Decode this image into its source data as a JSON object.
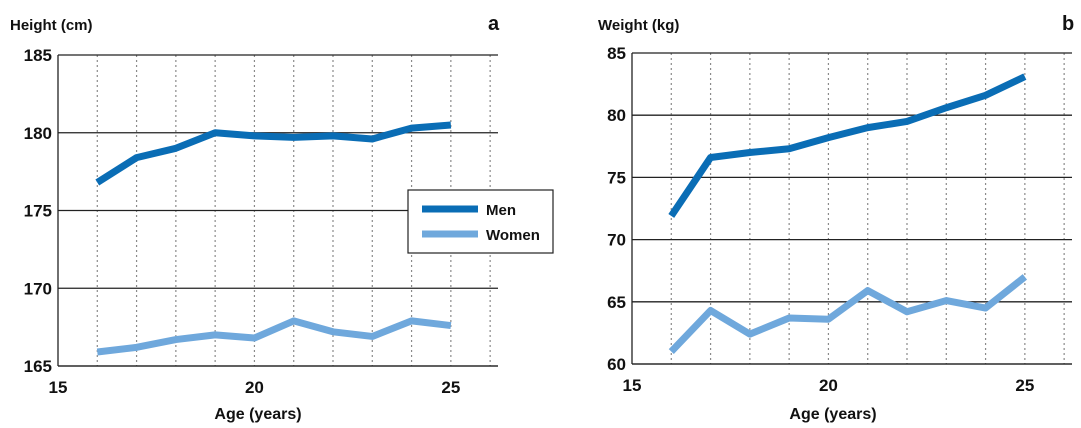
{
  "colors": {
    "men": "#0a6db5",
    "women": "#6fa8dc",
    "grid": "#222222",
    "vgrid": "#8a8a8a"
  },
  "legend": {
    "men": "Men",
    "women": "Women"
  },
  "chart_data": [
    {
      "type": "line",
      "panel": "a",
      "ylabel": "Height (cm)",
      "xlabel": "Age (years)",
      "xlim": [
        15,
        26.2
      ],
      "ylim": [
        165,
        185
      ],
      "xticks": [
        15,
        20,
        25
      ],
      "yticks": [
        165,
        170,
        175,
        180,
        185
      ],
      "grid": "on",
      "legend_position": "right",
      "x": [
        16,
        17,
        18,
        19,
        20,
        21,
        22,
        23,
        24,
        25
      ],
      "series": [
        {
          "name": "Men",
          "values": [
            176.8,
            178.4,
            179.0,
            180.0,
            179.8,
            179.7,
            179.8,
            179.6,
            180.3,
            180.5
          ]
        },
        {
          "name": "Women",
          "values": [
            165.9,
            166.2,
            166.7,
            167.0,
            166.8,
            167.9,
            167.2,
            166.9,
            167.9,
            167.6
          ]
        }
      ]
    },
    {
      "type": "line",
      "panel": "b",
      "ylabel": "Weight (kg)",
      "xlabel": "Age (years)",
      "xlim": [
        15,
        26.2
      ],
      "ylim": [
        60,
        85
      ],
      "xticks": [
        15,
        20,
        25
      ],
      "yticks": [
        60,
        65,
        70,
        75,
        80,
        85
      ],
      "grid": "on",
      "x": [
        16,
        17,
        18,
        19,
        20,
        21,
        22,
        23,
        24,
        25
      ],
      "series": [
        {
          "name": "Men",
          "values": [
            71.9,
            76.6,
            77.0,
            77.3,
            78.2,
            79.0,
            79.5,
            80.6,
            81.6,
            83.1
          ]
        },
        {
          "name": "Women",
          "values": [
            61.0,
            64.3,
            62.4,
            63.7,
            63.6,
            65.9,
            64.2,
            65.1,
            64.5,
            67.0
          ]
        }
      ]
    }
  ]
}
